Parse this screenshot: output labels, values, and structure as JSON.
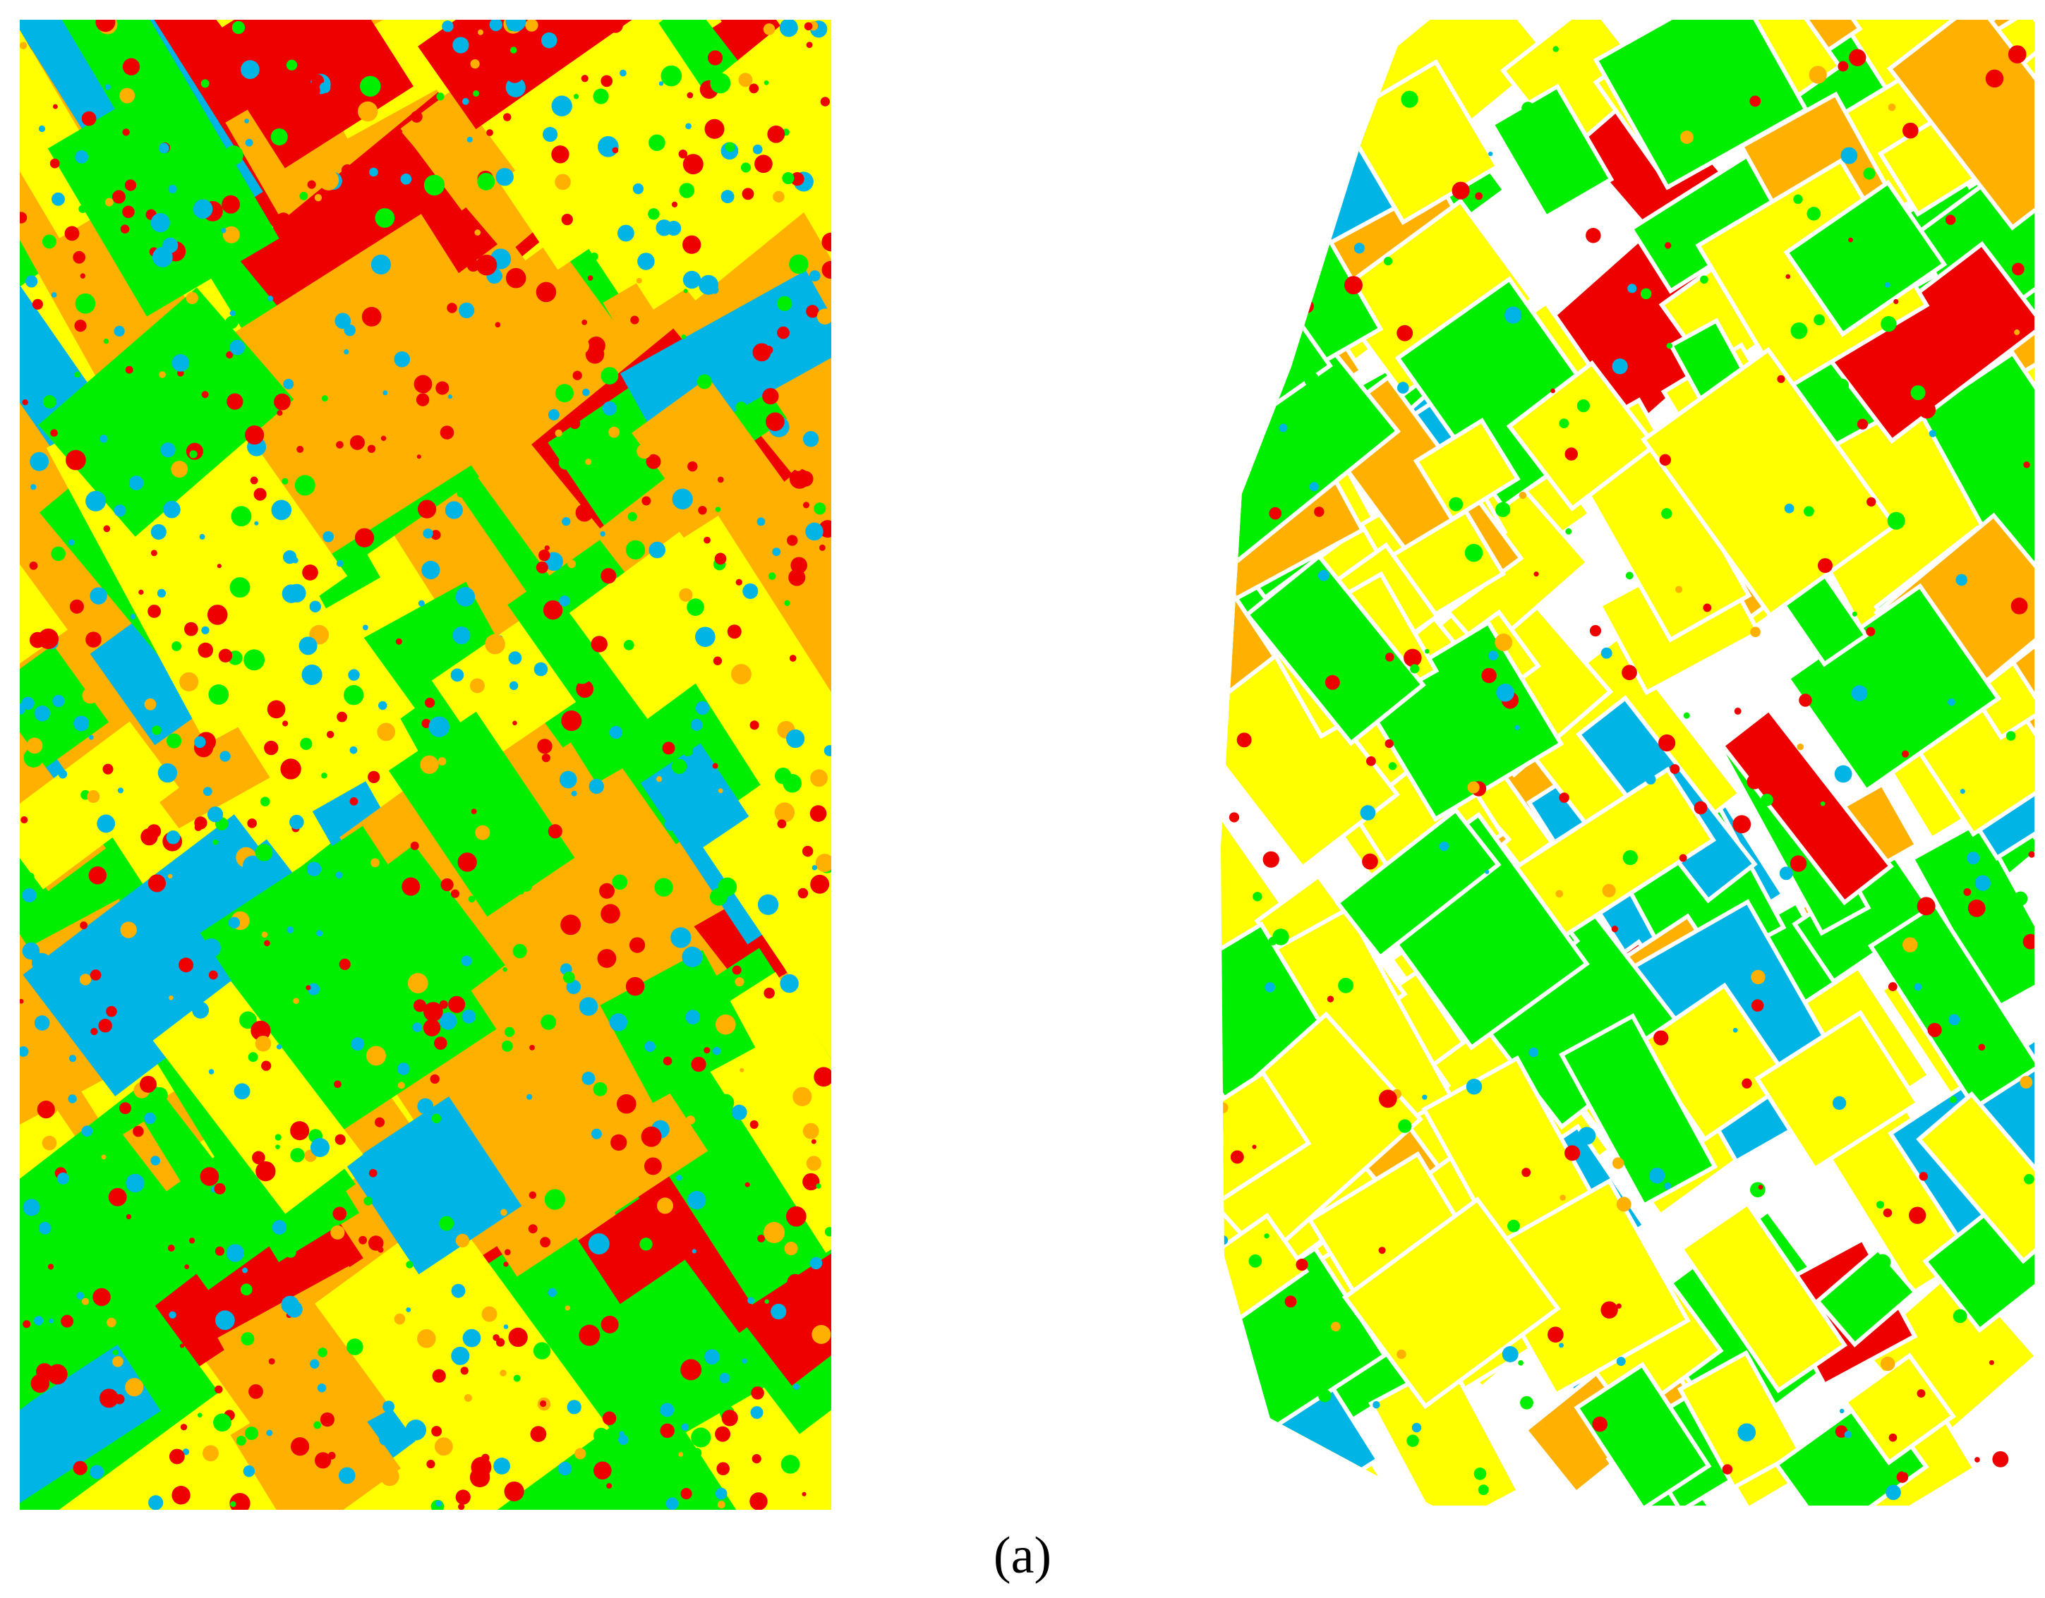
{
  "caption": "(a)"
}
